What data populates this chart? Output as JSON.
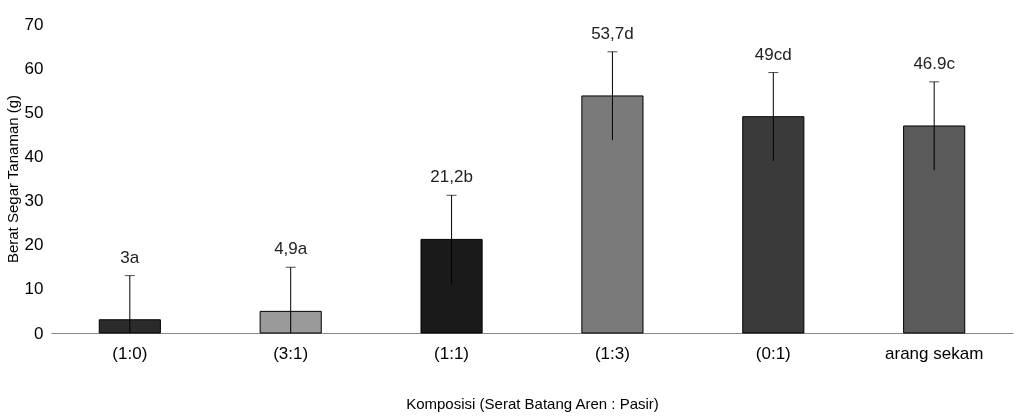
{
  "chart_data": {
    "type": "bar",
    "xlabel": "Komposisi (Serat Batang Aren : Pasir)",
    "ylabel": "Berat Segar Tanaman (g)",
    "categories": [
      "(1:0)",
      "(3:1)",
      "(1:1)",
      "(1:3)",
      "(0:1)",
      "arang sekam"
    ],
    "values": [
      3,
      4.9,
      21.2,
      53.7,
      49,
      46.9
    ],
    "colors": [
      "#2b2b2b",
      "#9a9a9a",
      "#1a1a1a",
      "#7a7a7a",
      "#3a3a3a",
      "#5a5a5a"
    ],
    "errors": [
      [
        0,
        13
      ],
      [
        0,
        14.9
      ],
      10,
      10,
      10,
      10
    ],
    "value_labels": [
      "3a",
      "4,9a",
      "21,2b",
      "53,7d",
      "49cd",
      "46.9c"
    ],
    "ylim": [
      0,
      70
    ],
    "yticks": [
      0,
      10,
      20,
      30,
      40,
      50,
      60,
      70
    ],
    "grid": false
  }
}
